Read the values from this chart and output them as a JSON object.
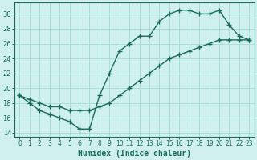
{
  "line1_x": [
    0,
    1,
    2,
    3,
    4,
    5,
    6,
    7,
    8,
    9,
    10,
    11,
    12,
    13,
    14,
    15,
    16,
    17,
    18,
    19,
    20,
    21,
    22,
    23
  ],
  "line1_y": [
    19,
    18,
    17,
    16.5,
    16,
    15.5,
    14.5,
    14.5,
    19,
    22,
    25,
    26,
    27,
    27,
    29,
    30,
    30.5,
    30.5,
    30,
    30,
    30.5,
    28.5,
    27,
    26.5
  ],
  "line2_x": [
    0,
    1,
    2,
    3,
    4,
    5,
    6,
    7,
    8,
    9,
    10,
    11,
    12,
    13,
    14,
    15,
    16,
    17,
    18,
    19,
    20,
    21,
    22,
    23
  ],
  "line2_y": [
    19,
    18.5,
    18,
    17.5,
    17.5,
    17,
    17,
    17,
    17.5,
    18,
    19,
    20,
    21,
    22,
    23,
    24,
    24.5,
    25,
    25.5,
    26,
    26.5,
    26.5,
    26.5,
    26.5
  ],
  "line_color": "#1a6b5e",
  "bg_color": "#cff0ee",
  "grid_color": "#aaddda",
  "xlabel": "Humidex (Indice chaleur)",
  "xlim": [
    -0.5,
    23.5
  ],
  "ylim": [
    13.5,
    31.5
  ],
  "yticks": [
    14,
    16,
    18,
    20,
    22,
    24,
    26,
    28,
    30
  ],
  "xticks": [
    0,
    1,
    2,
    3,
    4,
    5,
    6,
    7,
    8,
    9,
    10,
    11,
    12,
    13,
    14,
    15,
    16,
    17,
    18,
    19,
    20,
    21,
    22,
    23
  ],
  "marker": "+",
  "markersize": 4,
  "linewidth": 1.0
}
